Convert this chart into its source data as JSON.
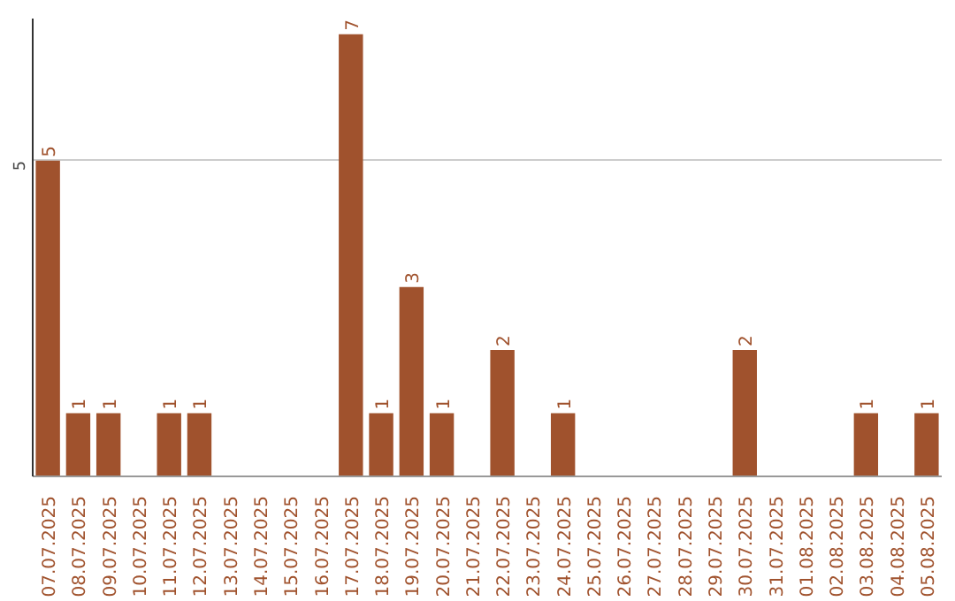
{
  "chart_data": {
    "type": "bar",
    "categories": [
      "07.07.2025",
      "08.07.2025",
      "09.07.2025",
      "10.07.2025",
      "11.07.2025",
      "12.07.2025",
      "13.07.2025",
      "14.07.2025",
      "15.07.2025",
      "16.07.2025",
      "17.07.2025",
      "18.07.2025",
      "19.07.2025",
      "20.07.2025",
      "21.07.2025",
      "22.07.2025",
      "23.07.2025",
      "24.07.2025",
      "25.07.2025",
      "26.07.2025",
      "27.07.2025",
      "28.07.2025",
      "29.07.2025",
      "30.07.2025",
      "31.07.2025",
      "01.08.2025",
      "02.08.2025",
      "03.08.2025",
      "04.08.2025",
      "05.08.2025"
    ],
    "values": [
      5,
      1,
      1,
      0,
      1,
      1,
      0,
      0,
      0,
      0,
      7,
      1,
      3,
      1,
      0,
      2,
      0,
      1,
      0,
      0,
      0,
      0,
      0,
      2,
      0,
      0,
      0,
      1,
      0,
      1
    ],
    "value_labels": [
      "5",
      "1",
      "1",
      null,
      "1",
      "1",
      null,
      null,
      null,
      null,
      "7",
      "1",
      "3",
      "1",
      null,
      "2",
      null,
      "1",
      null,
      null,
      null,
      null,
      null,
      "2",
      null,
      null,
      null,
      "1",
      null,
      "1"
    ],
    "color": "#a0522d",
    "ylim": [
      0,
      7.25
    ],
    "yticks": [
      5
    ],
    "grid": "y"
  }
}
